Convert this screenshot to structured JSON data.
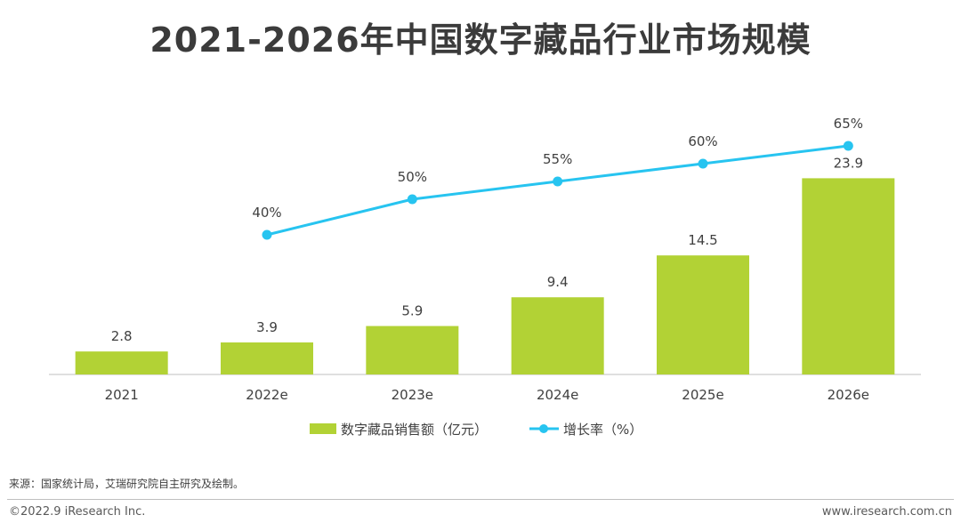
{
  "chart_data": {
    "type": "bar",
    "title": "2021-2026年中国数字藏品行业市场规模",
    "categories": [
      "2021",
      "2022e",
      "2023e",
      "2024e",
      "2025e",
      "2026e"
    ],
    "series": [
      {
        "name": "数字藏品销售额（亿元）",
        "kind": "bar",
        "color": "#b2d235",
        "values": [
          2.8,
          3.9,
          5.9,
          9.4,
          14.5,
          23.9
        ],
        "labels": [
          "2.8",
          "3.9",
          "5.9",
          "9.4",
          "14.5",
          "23.9"
        ]
      },
      {
        "name": "增长率（%）",
        "kind": "line",
        "color": "#27c4f0",
        "values": [
          null,
          40,
          50,
          55,
          60,
          65
        ],
        "labels": [
          "",
          "40%",
          "50%",
          "55%",
          "60%",
          "65%"
        ]
      }
    ],
    "bar_ylim": [
      0,
      30
    ],
    "line_ylim": [
      0,
      75
    ],
    "legend_position": "bottom-center",
    "grid": false
  },
  "source_text": "来源：国家统计局，艾瑞研究院自主研究及绘制。",
  "copyright_text": "©2022.9 iResearch Inc.",
  "website_text": "www.iresearch.com.cn"
}
